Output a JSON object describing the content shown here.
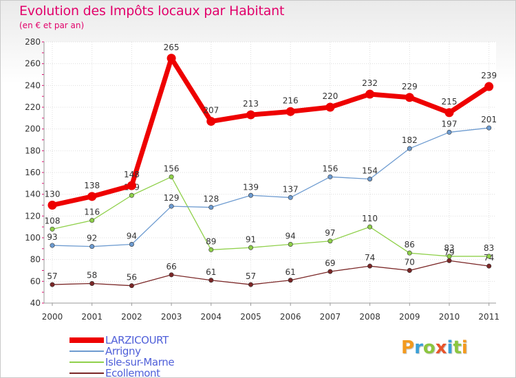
{
  "chart_data": {
    "type": "line",
    "title": "Evolution des Impôts locaux par Habitant",
    "subtitle": "(en € et par an)",
    "categories": [
      "2000",
      "2001",
      "2002",
      "2003",
      "2004",
      "2005",
      "2006",
      "2007",
      "2008",
      "2009",
      "2010",
      "2011"
    ],
    "ylim": [
      40,
      280
    ],
    "yticks": [
      40,
      60,
      80,
      100,
      120,
      140,
      160,
      180,
      200,
      220,
      240,
      260,
      280
    ],
    "grid": true,
    "series": [
      {
        "name": "LARZICOURT",
        "values": [
          130,
          138,
          148,
          265,
          207,
          213,
          216,
          220,
          232,
          229,
          215,
          239
        ],
        "color": "#ee0000",
        "weight": "bold"
      },
      {
        "name": "Arrigny",
        "values": [
          93,
          92,
          94,
          129,
          128,
          139,
          137,
          156,
          154,
          182,
          197,
          201
        ],
        "color": "#6d9bd0"
      },
      {
        "name": "Isle-sur-Marne",
        "values": [
          108,
          116,
          139,
          156,
          89,
          91,
          94,
          97,
          110,
          86,
          83,
          83
        ],
        "color": "#8fd04a"
      },
      {
        "name": "Ecollemont",
        "values": [
          57,
          58,
          56,
          66,
          61,
          57,
          61,
          69,
          74,
          70,
          79,
          74
        ],
        "color": "#7a2626"
      }
    ]
  },
  "logo": {
    "letters": [
      "P",
      "r",
      "o",
      "x",
      "i",
      "t",
      "i"
    ],
    "colors": [
      "#f39a1e",
      "#3aa0d8",
      "#8cc63f",
      "#e8542b",
      "#3aa0d8",
      "#8cc63f",
      "#f39a1e"
    ]
  }
}
